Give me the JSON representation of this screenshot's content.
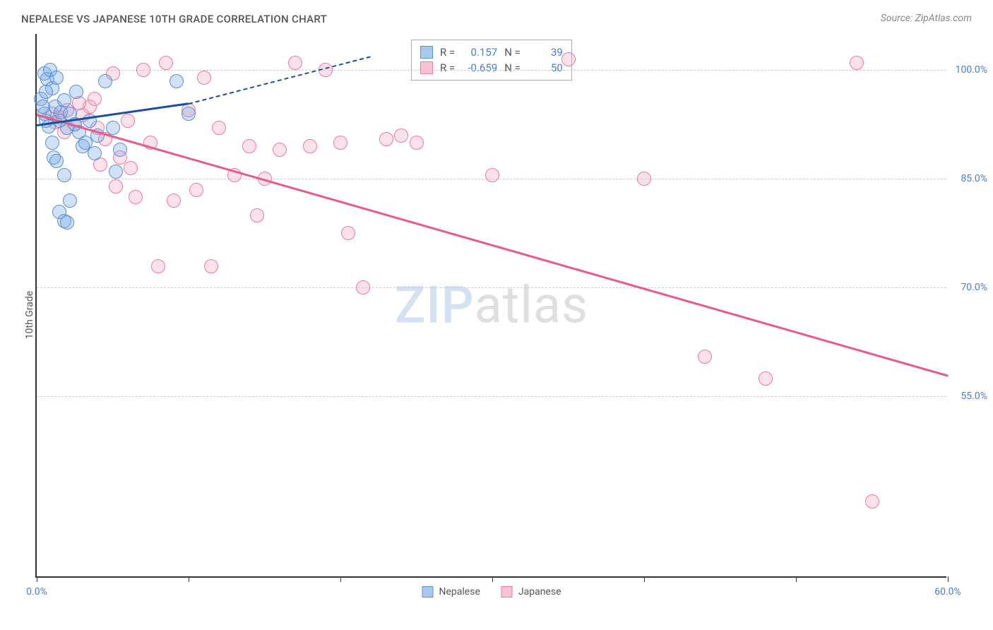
{
  "title": "NEPALESE VS JAPANESE 10TH GRADE CORRELATION CHART",
  "source": "Source: ZipAtlas.com",
  "y_axis_label": "10th Grade",
  "watermark": {
    "part1": "ZIP",
    "part2": "atlas"
  },
  "chart": {
    "type": "scatter",
    "xlim": [
      0,
      60
    ],
    "ylim": [
      30,
      105
    ],
    "y_ticks": [
      55.0,
      70.0,
      85.0,
      100.0
    ],
    "y_tick_labels": [
      "55.0%",
      "70.0%",
      "85.0%",
      "100.0%"
    ],
    "x_ticks": [
      0,
      10,
      20,
      30,
      40,
      50,
      60
    ],
    "x_tick_labels_visible": {
      "0": "0.0%",
      "60": "60.0%"
    },
    "background_color": "#ffffff",
    "grid_color": "#cccccc",
    "axis_color": "#333333",
    "tick_label_color": "#4a7ec9",
    "point_radius": 10,
    "point_stroke_width": 1.5,
    "series": {
      "nepalese": {
        "label": "Nepalese",
        "fill": "rgba(120,170,230,0.35)",
        "stroke": "#5a8fd0",
        "swatch_fill": "#a9c9ec",
        "swatch_stroke": "#5a8fd0",
        "R": "0.157",
        "N": "39",
        "regression": {
          "color": "#1a4e9e",
          "solid_end_x": 10,
          "dashed_end_x": 22,
          "y_start": 92.5,
          "y_solid_end": 95.5,
          "y_dashed_end": 102
        },
        "points": [
          [
            0.5,
            99.5
          ],
          [
            0.7,
            98.8
          ],
          [
            0.9,
            100.0
          ],
          [
            1.0,
            97.5
          ],
          [
            1.2,
            95.0
          ],
          [
            1.3,
            99.0
          ],
          [
            1.5,
            93.0
          ],
          [
            1.6,
            94.2
          ],
          [
            1.8,
            95.8
          ],
          [
            2.0,
            92.0
          ],
          [
            2.2,
            94.0
          ],
          [
            2.5,
            92.5
          ],
          [
            2.6,
            97.0
          ],
          [
            2.8,
            91.5
          ],
          [
            3.0,
            89.5
          ],
          [
            3.2,
            90.0
          ],
          [
            3.5,
            93.0
          ],
          [
            3.8,
            88.5
          ],
          [
            4.0,
            91.0
          ],
          [
            4.5,
            98.5
          ],
          [
            5.0,
            92.0
          ],
          [
            5.2,
            86.0
          ],
          [
            5.5,
            89.0
          ],
          [
            1.0,
            90.0
          ],
          [
            1.1,
            88.0
          ],
          [
            1.3,
            87.5
          ],
          [
            1.8,
            85.5
          ],
          [
            0.5,
            94.0
          ],
          [
            0.6,
            93.0
          ],
          [
            0.8,
            92.2
          ],
          [
            1.5,
            80.5
          ],
          [
            1.8,
            79.2
          ],
          [
            2.0,
            79.0
          ],
          [
            2.2,
            82.0
          ],
          [
            0.3,
            96.0
          ],
          [
            0.4,
            95.0
          ],
          [
            0.6,
            97.0
          ],
          [
            9.2,
            98.5
          ],
          [
            10.0,
            94.0
          ]
        ]
      },
      "japanese": {
        "label": "Japanese",
        "fill": "rgba(245,170,195,0.35)",
        "stroke": "#e87ba2",
        "swatch_fill": "#f7c3d4",
        "swatch_stroke": "#e87ba2",
        "R": "-0.659",
        "N": "50",
        "regression": {
          "color": "#e85a8a",
          "x_start": 0,
          "x_end": 60,
          "y_start": 94.0,
          "y_end": 58.0
        },
        "points": [
          [
            1.0,
            94.0
          ],
          [
            1.5,
            93.5
          ],
          [
            2.0,
            94.5
          ],
          [
            2.5,
            92.5
          ],
          [
            3.0,
            93.8
          ],
          [
            3.5,
            95.0
          ],
          [
            4.0,
            92.0
          ],
          [
            4.5,
            90.5
          ],
          [
            5.0,
            99.5
          ],
          [
            5.5,
            88.0
          ],
          [
            6.0,
            93.0
          ],
          [
            6.5,
            82.5
          ],
          [
            7.0,
            100.0
          ],
          [
            7.5,
            90.0
          ],
          [
            8.0,
            73.0
          ],
          [
            8.5,
            101.0
          ],
          [
            9.0,
            82.0
          ],
          [
            10.0,
            94.5
          ],
          [
            10.5,
            83.5
          ],
          [
            11.0,
            99.0
          ],
          [
            11.5,
            73.0
          ],
          [
            12.0,
            92.0
          ],
          [
            13.0,
            85.5
          ],
          [
            14.0,
            89.5
          ],
          [
            14.5,
            80.0
          ],
          [
            15.0,
            85.0
          ],
          [
            16.0,
            89.0
          ],
          [
            17.0,
            101.0
          ],
          [
            18.0,
            89.5
          ],
          [
            19.0,
            100.0
          ],
          [
            20.0,
            90.0
          ],
          [
            20.5,
            77.5
          ],
          [
            21.5,
            70.0
          ],
          [
            23.0,
            90.5
          ],
          [
            24.0,
            91.0
          ],
          [
            25.0,
            90.0
          ],
          [
            30.0,
            85.5
          ],
          [
            35.0,
            101.5
          ],
          [
            40.0,
            85.0
          ],
          [
            44.0,
            60.5
          ],
          [
            48.0,
            57.5
          ],
          [
            54.0,
            101.0
          ],
          [
            55.0,
            40.5
          ],
          [
            2.8,
            95.5
          ],
          [
            3.8,
            96.0
          ],
          [
            4.2,
            87.0
          ],
          [
            5.2,
            84.0
          ],
          [
            6.2,
            86.5
          ],
          [
            1.2,
            92.8
          ],
          [
            1.8,
            91.5
          ]
        ]
      }
    }
  },
  "stats_box": {
    "r_label": "R =",
    "n_label": "N ="
  }
}
